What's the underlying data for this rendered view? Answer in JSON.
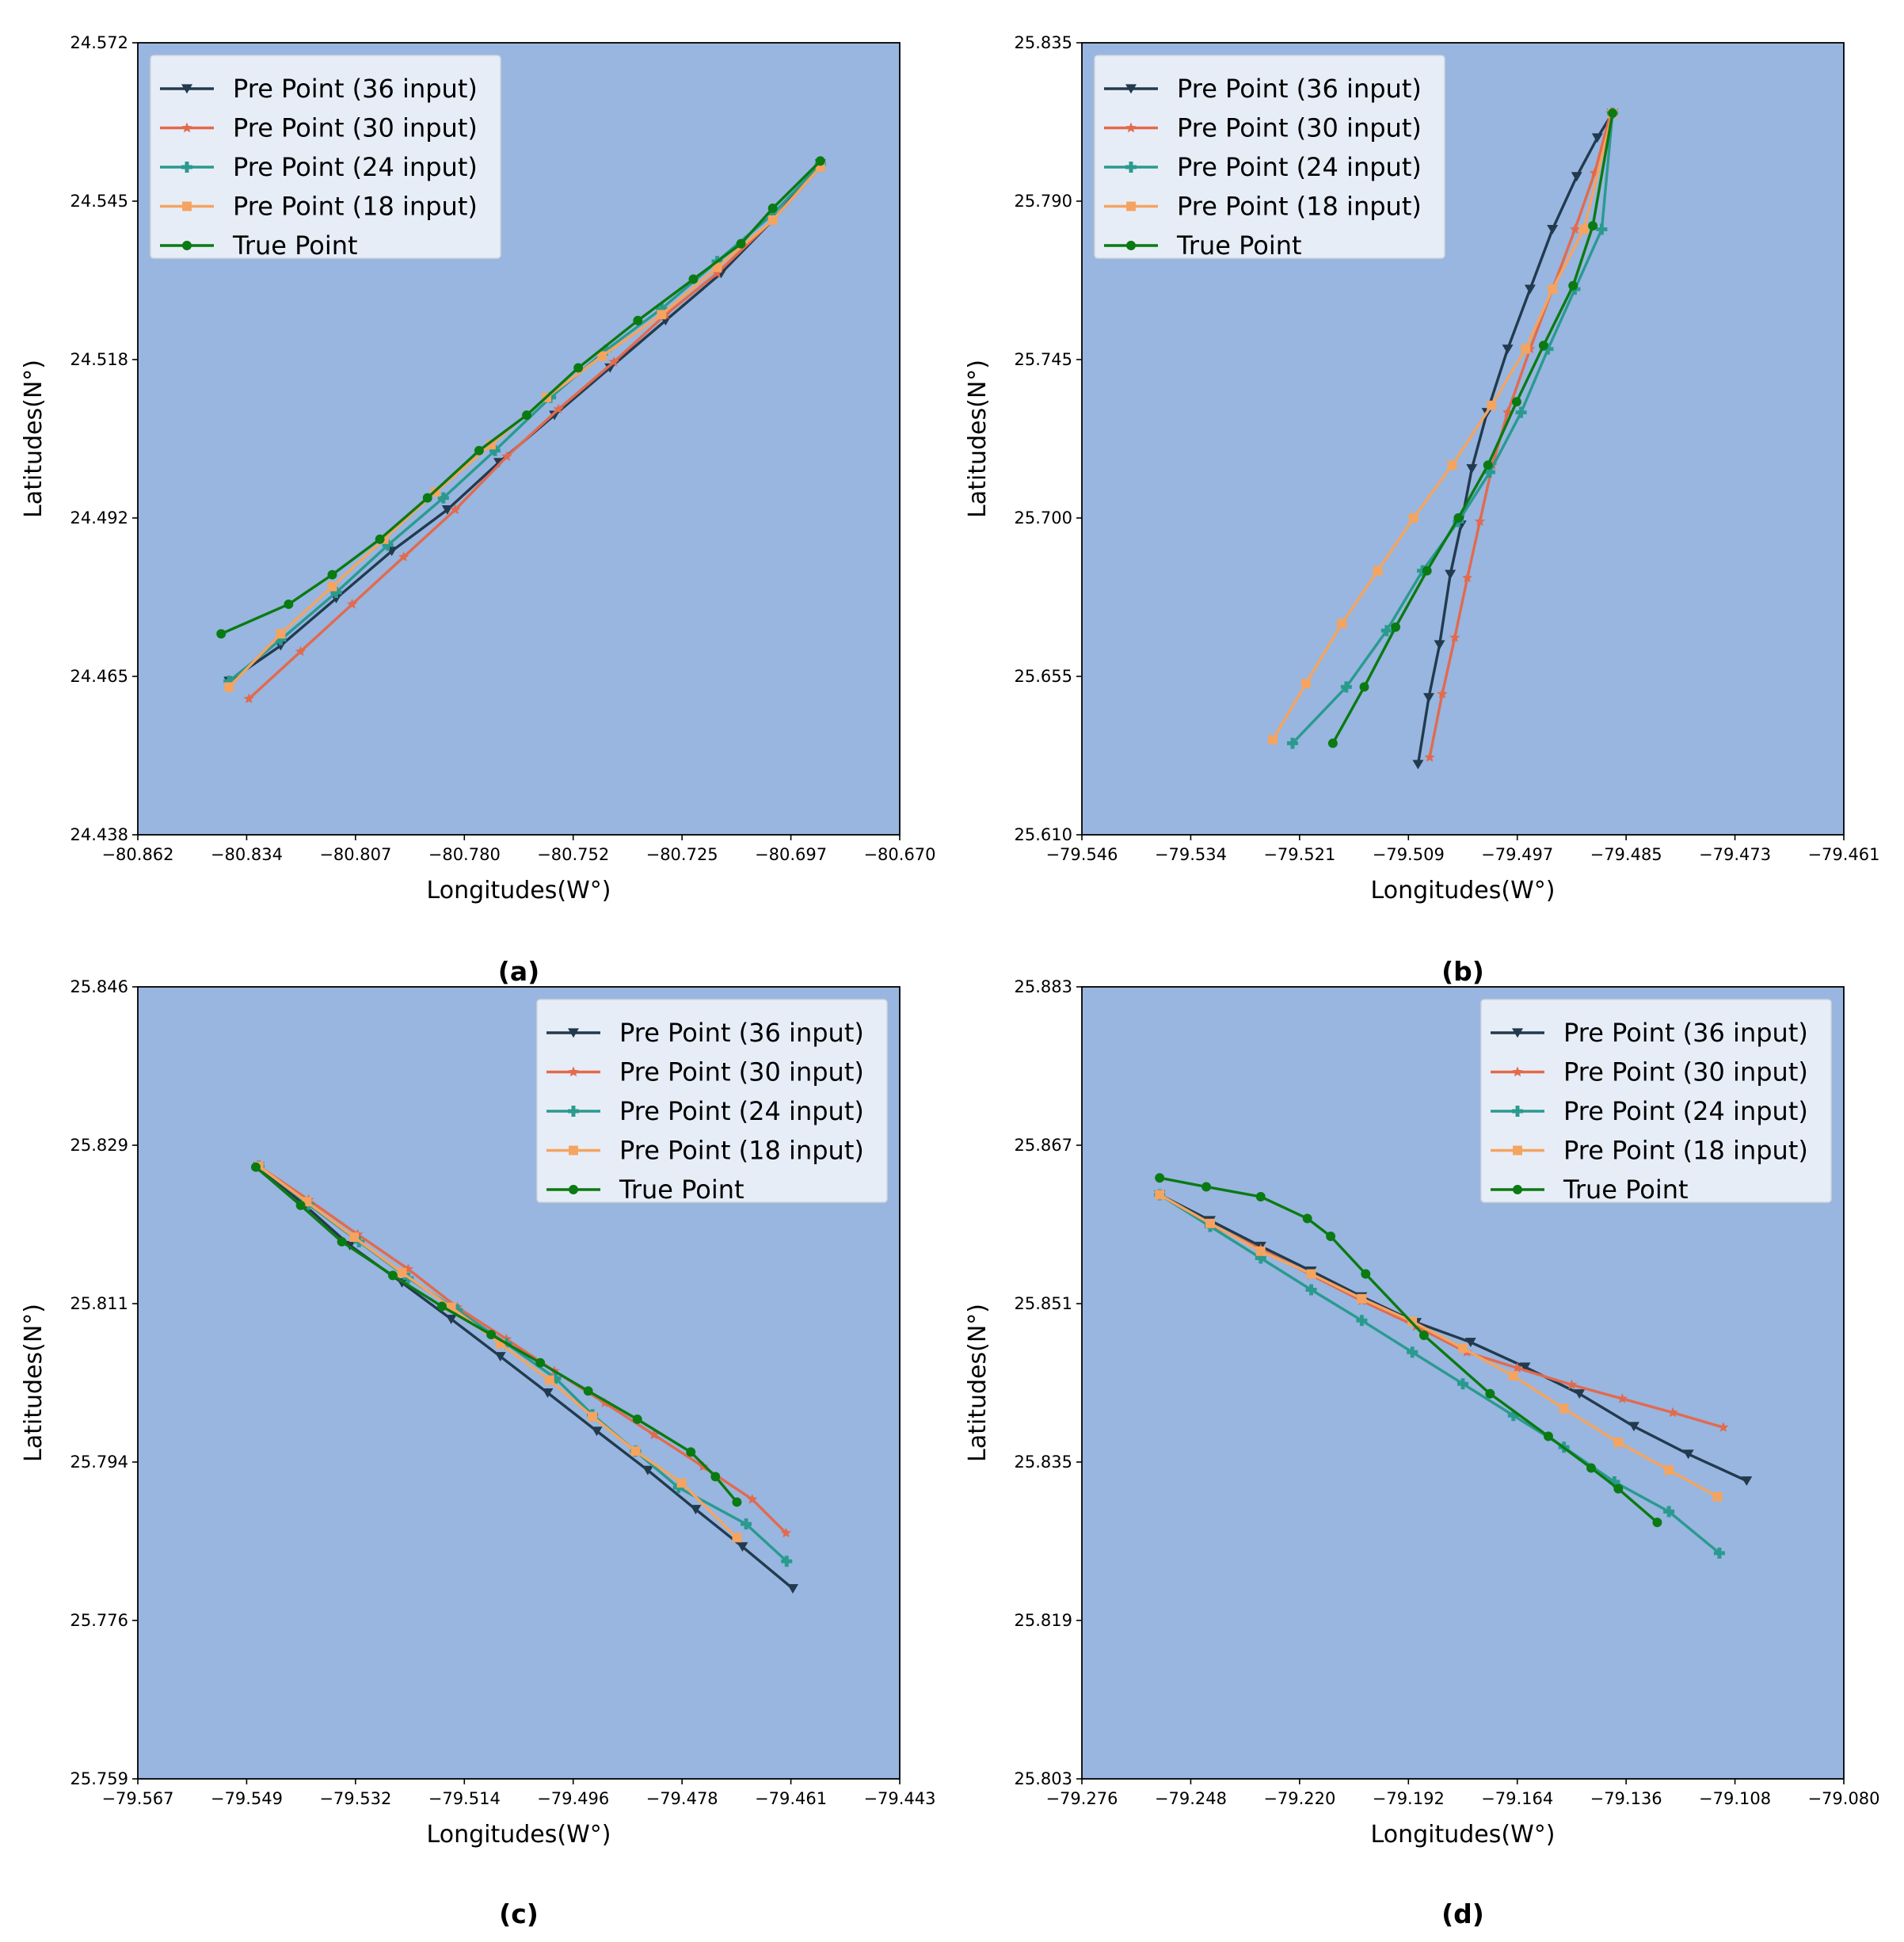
{
  "figure_captions": [
    "(a)",
    "(b)",
    "(c)",
    "(d)"
  ],
  "colors": {
    "plot_background": "#98b6e0",
    "pre36": "#223a4e",
    "pre30": "#e26a4e",
    "pre24": "#2a9a8f",
    "pre18": "#f4a460",
    "true": "#0a7a12"
  },
  "chart_data": [
    {
      "type": "line",
      "caption": "(a)",
      "xlabel": "Longitudes(W°)",
      "ylabel": "Latitudes(N°)",
      "xlim": [
        -80.862,
        -80.67
      ],
      "ylim": [
        24.438,
        24.572
      ],
      "xticks": [
        "−80.862",
        "−80.834",
        "−80.807",
        "−80.780",
        "−80.752",
        "−80.725",
        "−80.697",
        "−80.670"
      ],
      "yticks": [
        "24.438",
        "24.465",
        "24.492",
        "24.518",
        "24.545",
        "24.572"
      ],
      "legend_position": "upper-left",
      "series": [
        {
          "name": "Pre Point (36 input)",
          "color": "#223a4e",
          "marker": "triangle-down",
          "x": [
            -80.839,
            -80.826,
            -80.812,
            -80.798,
            -80.784,
            -80.771,
            -80.757,
            -80.743,
            -80.729,
            -80.715,
            -80.702,
            -80.69
          ],
          "y": [
            24.464,
            24.47,
            24.478,
            24.486,
            24.493,
            24.501,
            24.509,
            24.517,
            24.525,
            24.533,
            24.542,
            24.5515
          ]
        },
        {
          "name": "Pre Point (30 input)",
          "color": "#e26a4e",
          "marker": "star",
          "x": [
            -80.834,
            -80.821,
            -80.808,
            -80.795,
            -80.782,
            -80.769,
            -80.756,
            -80.742,
            -80.729,
            -80.716,
            -80.702,
            -80.69
          ],
          "y": [
            24.461,
            24.469,
            24.477,
            24.485,
            24.493,
            24.502,
            24.51,
            24.518,
            24.526,
            24.533,
            24.542,
            24.551
          ]
        },
        {
          "name": "Pre Point (24 input)",
          "color": "#2a9a8f",
          "marker": "plus",
          "x": [
            -80.839,
            -80.826,
            -80.812,
            -80.799,
            -80.785,
            -80.772,
            -80.758,
            -80.744,
            -80.73,
            -80.716,
            -80.702,
            -80.69
          ],
          "y": [
            24.464,
            24.471,
            24.479,
            24.487,
            24.495,
            24.503,
            24.512,
            24.52,
            24.527,
            24.535,
            24.543,
            24.5515
          ]
        },
        {
          "name": "Pre Point (18 input)",
          "color": "#f4a460",
          "marker": "square",
          "x": [
            -80.839,
            -80.826,
            -80.813,
            -80.8,
            -80.787,
            -80.773,
            -80.759,
            -80.745,
            -80.73,
            -80.716,
            -80.702,
            -80.69
          ],
          "y": [
            24.463,
            24.472,
            24.48,
            24.488,
            24.496,
            24.504,
            24.512,
            24.519,
            24.526,
            24.534,
            24.542,
            24.551
          ]
        },
        {
          "name": "True Point",
          "color": "#0a7a12",
          "marker": "circle",
          "x": [
            -80.841,
            -80.824,
            -80.813,
            -80.801,
            -80.789,
            -80.776,
            -80.764,
            -80.751,
            -80.736,
            -80.722,
            -80.71,
            -80.702,
            -80.69
          ],
          "y": [
            24.472,
            24.477,
            24.482,
            24.488,
            24.495,
            24.503,
            24.509,
            24.517,
            24.525,
            24.532,
            24.538,
            24.544,
            24.552
          ]
        }
      ]
    },
    {
      "type": "line",
      "caption": "(b)",
      "xlabel": "Longitudes(W°)",
      "ylabel": "Latitudes(N°)",
      "xlim": [
        -79.546,
        -79.461
      ],
      "ylim": [
        25.61,
        25.835
      ],
      "xticks": [
        "−79.546",
        "−79.534",
        "−79.521",
        "−79.509",
        "−79.497",
        "−79.485",
        "−79.473",
        "−79.461"
      ],
      "yticks": [
        "25.610",
        "25.655",
        "25.700",
        "25.745",
        "25.790",
        "25.835"
      ],
      "legend_position": "upper-left",
      "series": [
        {
          "name": "Pre Point (36 input)",
          "color": "#223a4e",
          "marker": "triangle-down",
          "x": [
            -79.5085,
            -79.5073,
            -79.5061,
            -79.5049,
            -79.5037,
            -79.5025,
            -79.5008,
            -79.4985,
            -79.496,
            -79.4935,
            -79.4908,
            -79.4885,
            -79.4868
          ],
          "y": [
            25.63,
            25.649,
            25.664,
            25.684,
            25.698,
            25.714,
            25.73,
            25.748,
            25.765,
            25.782,
            25.797,
            25.808,
            25.815
          ]
        },
        {
          "name": "Pre Point (30 input)",
          "color": "#e26a4e",
          "marker": "star",
          "x": [
            -79.5072,
            -79.5058,
            -79.5044,
            -79.503,
            -79.5016,
            -79.5002,
            -79.4985,
            -79.496,
            -79.4935,
            -79.491,
            -79.4888,
            -79.487
          ],
          "y": [
            25.632,
            25.65,
            25.666,
            25.683,
            25.699,
            25.715,
            25.73,
            25.748,
            25.765,
            25.782,
            25.798,
            25.815
          ]
        },
        {
          "name": "Pre Point (24 input)",
          "color": "#2a9a8f",
          "marker": "plus",
          "x": [
            -79.5225,
            -79.5165,
            -79.512,
            -79.508,
            -79.504,
            -79.5005,
            -79.497,
            -79.494,
            -79.491,
            -79.488,
            -79.4868
          ],
          "y": [
            25.636,
            25.652,
            25.668,
            25.685,
            25.699,
            25.713,
            25.73,
            25.748,
            25.765,
            25.782,
            25.815
          ]
        },
        {
          "name": "Pre Point (18 input)",
          "color": "#f4a460",
          "marker": "square",
          "x": [
            -79.5247,
            -79.521,
            -79.517,
            -79.513,
            -79.509,
            -79.5047,
            -79.5003,
            -79.4965,
            -79.4935,
            -79.49,
            -79.4868
          ],
          "y": [
            25.637,
            25.653,
            25.67,
            25.685,
            25.7,
            25.715,
            25.732,
            25.748,
            25.765,
            25.782,
            25.815
          ]
        },
        {
          "name": "True Point",
          "color": "#0a7a12",
          "marker": "circle",
          "x": [
            -79.518,
            -79.5145,
            -79.511,
            -79.5075,
            -79.504,
            -79.5007,
            -79.4975,
            -79.4945,
            -79.4912,
            -79.489,
            -79.4868
          ],
          "y": [
            25.636,
            25.652,
            25.669,
            25.685,
            25.7,
            25.715,
            25.733,
            25.749,
            25.766,
            25.783,
            25.815
          ]
        }
      ]
    },
    {
      "type": "line",
      "caption": "(c)",
      "xlabel": "Longitudes(W°)",
      "ylabel": "Latitudes(N°)",
      "xlim": [
        -79.567,
        -79.443
      ],
      "ylim": [
        25.759,
        25.846
      ],
      "xticks": [
        "−79.567",
        "−79.549",
        "−79.532",
        "−79.514",
        "−79.496",
        "−79.478",
        "−79.461",
        "−79.443"
      ],
      "yticks": [
        "25.759",
        "25.776",
        "25.794",
        "25.811",
        "25.829",
        "25.846"
      ],
      "legend_position": "upper-right",
      "series": [
        {
          "name": "Pre Point (36 input)",
          "color": "#223a4e",
          "marker": "triangle-down",
          "x": [
            -79.5473,
            -79.54,
            -79.5325,
            -79.524,
            -79.516,
            -79.508,
            -79.5003,
            -79.4923,
            -79.484,
            -79.4762,
            -79.4686,
            -79.4604
          ],
          "y": [
            25.8263,
            25.8221,
            25.8176,
            25.8135,
            25.8095,
            25.8054,
            25.8014,
            25.7972,
            25.7929,
            25.7886,
            25.7845,
            25.7799
          ]
        },
        {
          "name": "Pre Point (30 input)",
          "color": "#e26a4e",
          "marker": "star",
          "x": [
            -79.5473,
            -79.5392,
            -79.5312,
            -79.523,
            -79.515,
            -79.507,
            -79.4992,
            -79.491,
            -79.483,
            -79.475,
            -79.467,
            -79.4615
          ],
          "y": [
            25.8263,
            25.8226,
            25.8188,
            25.815,
            25.8108,
            25.8073,
            25.8038,
            25.8003,
            25.7968,
            25.7933,
            25.7897,
            25.786
          ]
        },
        {
          "name": "Pre Point (24 input)",
          "color": "#2a9a8f",
          "marker": "plus",
          "x": [
            -79.5473,
            -79.5392,
            -79.531,
            -79.523,
            -79.515,
            -79.507,
            -79.499,
            -79.493,
            -79.486,
            -79.479,
            -79.468,
            -79.4614
          ],
          "y": [
            25.8263,
            25.8221,
            25.818,
            25.814,
            25.8105,
            25.8068,
            25.803,
            25.799,
            25.795,
            25.791,
            25.787,
            25.7829
          ]
        },
        {
          "name": "Pre Point (18 input)",
          "color": "#f4a460",
          "marker": "square",
          "x": [
            -79.5473,
            -79.5395,
            -79.5318,
            -79.524,
            -79.516,
            -79.508,
            -79.5,
            -79.493,
            -79.486,
            -79.4785,
            -79.4695
          ],
          "y": [
            25.8263,
            25.8224,
            25.8185,
            25.8146,
            25.8108,
            25.8068,
            25.8028,
            25.7988,
            25.795,
            25.7915,
            25.7855
          ]
        },
        {
          "name": "True Point",
          "color": "#0a7a12",
          "marker": "circle",
          "x": [
            -79.5478,
            -79.5405,
            -79.5338,
            -79.5255,
            -79.5175,
            -79.5095,
            -79.5015,
            -79.4937,
            -79.4857,
            -79.477,
            -79.473,
            -79.4695
          ],
          "y": [
            25.8262,
            25.822,
            25.818,
            25.8143,
            25.8109,
            25.8078,
            25.8047,
            25.8016,
            25.7985,
            25.7949,
            25.7922,
            25.7894
          ]
        }
      ]
    },
    {
      "type": "line",
      "caption": "(d)",
      "xlabel": "Longitudes(W°)",
      "ylabel": "Latitudes(N°)",
      "xlim": [
        -79.276,
        -79.08
      ],
      "ylim": [
        25.803,
        25.883
      ],
      "xticks": [
        "−79.276",
        "−79.248",
        "−79.220",
        "−79.192",
        "−79.164",
        "−79.136",
        "−79.108",
        "−79.080"
      ],
      "yticks": [
        "25.803",
        "25.819",
        "25.835",
        "25.851",
        "25.867",
        "25.883"
      ],
      "legend_position": "upper-right",
      "series": [
        {
          "name": "Pre Point (36 input)",
          "color": "#223a4e",
          "marker": "triangle-down",
          "x": [
            -79.256,
            -79.243,
            -79.23,
            -79.217,
            -79.204,
            -79.19,
            -79.176,
            -79.162,
            -79.148,
            -79.134,
            -79.12,
            -79.105
          ],
          "y": [
            25.862,
            25.8594,
            25.8568,
            25.8543,
            25.8517,
            25.8491,
            25.8471,
            25.8446,
            25.8419,
            25.8386,
            25.8358,
            25.8331
          ]
        },
        {
          "name": "Pre Point (30 input)",
          "color": "#e26a4e",
          "marker": "star",
          "x": [
            -79.256,
            -79.243,
            -79.23,
            -79.217,
            -79.204,
            -79.19,
            -79.177,
            -79.164,
            -79.15,
            -79.137,
            -79.124,
            -79.111
          ],
          "y": [
            25.862,
            25.859,
            25.8565,
            25.8539,
            25.8513,
            25.8487,
            25.8461,
            25.8445,
            25.8428,
            25.8414,
            25.84,
            25.8385
          ]
        },
        {
          "name": "Pre Point (24 input)",
          "color": "#2a9a8f",
          "marker": "plus",
          "x": [
            -79.256,
            -79.243,
            -79.23,
            -79.217,
            -79.204,
            -79.191,
            -79.178,
            -79.165,
            -79.152,
            -79.139,
            -79.125,
            -79.112
          ],
          "y": [
            25.862,
            25.8588,
            25.8556,
            25.8524,
            25.8493,
            25.8461,
            25.8429,
            25.8397,
            25.8365,
            25.833,
            25.83,
            25.8258
          ]
        },
        {
          "name": "Pre Point (18 input)",
          "color": "#f4a460",
          "marker": "square",
          "x": [
            -79.256,
            -79.243,
            -79.23,
            -79.217,
            -79.204,
            -79.191,
            -79.178,
            -79.165,
            -79.152,
            -79.138,
            -79.125,
            -79.1125
          ],
          "y": [
            25.862,
            25.8591,
            25.8563,
            25.854,
            25.8515,
            25.8492,
            25.8465,
            25.8437,
            25.8404,
            25.837,
            25.8342,
            25.8315
          ]
        },
        {
          "name": "True Point",
          "color": "#0a7a12",
          "marker": "circle",
          "x": [
            -79.256,
            -79.244,
            -79.23,
            -79.218,
            -79.212,
            -79.203,
            -79.188,
            -79.171,
            -79.156,
            -79.145,
            -79.138,
            -79.128
          ],
          "y": [
            25.8637,
            25.8628,
            25.8618,
            25.8596,
            25.8578,
            25.854,
            25.8478,
            25.8419,
            25.8376,
            25.8344,
            25.8323,
            25.8289
          ]
        }
      ]
    }
  ]
}
